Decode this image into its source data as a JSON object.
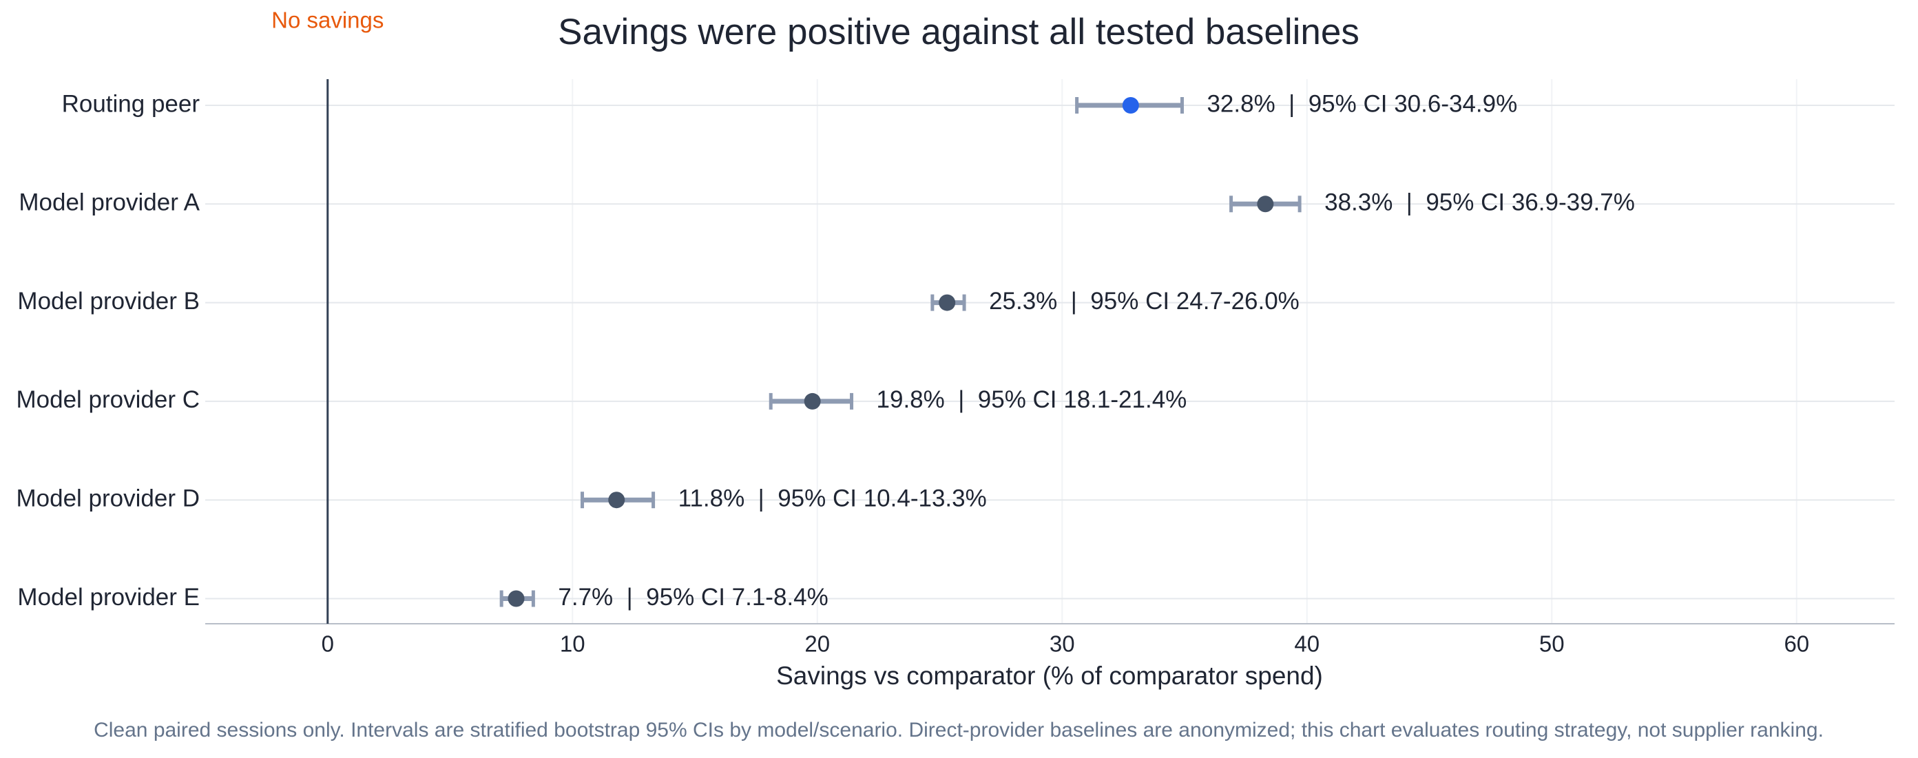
{
  "chart_data": {
    "type": "dot",
    "title": "Savings were positive against all tested baselines",
    "xlabel": "Savings vs comparator (% of comparator spend)",
    "footnote": "Clean paired sessions only. Intervals are stratified bootstrap 95% CIs by model/scenario. Direct-provider baselines are anonymized; this chart evaluates routing strategy, not supplier ranking.",
    "categories": [
      "Routing peer",
      "Model provider A",
      "Model provider B",
      "Model provider C",
      "Model provider D",
      "Model provider E"
    ],
    "values": [
      32.8,
      38.3,
      25.3,
      19.8,
      11.8,
      7.7
    ],
    "ci_low": [
      30.6,
      36.9,
      24.7,
      18.1,
      10.4,
      7.1
    ],
    "ci_high": [
      34.9,
      39.7,
      26.0,
      21.4,
      13.3,
      8.4
    ],
    "value_labels": [
      "32.8%  |  95% CI 30.6-34.9%",
      "38.3%  |  95% CI 36.9-39.7%",
      "25.3%  |  95% CI 24.7-26.0%",
      "19.8%  |  95% CI 18.1-21.4%",
      "11.8%  |  95% CI 10.4-13.3%",
      "7.7%  |  95% CI 7.1-8.4%"
    ],
    "point_colors": [
      "#2563eb",
      "#475569",
      "#475569",
      "#475569",
      "#475569",
      "#475569"
    ],
    "error_color": "#8e9bb2",
    "reference_line": {
      "value": 0,
      "label": "No savings",
      "color": "#e8590c"
    },
    "xlim": [
      -5,
      64
    ],
    "xticks": [
      0,
      10,
      20,
      30,
      40,
      50,
      60
    ],
    "grid": true
  }
}
